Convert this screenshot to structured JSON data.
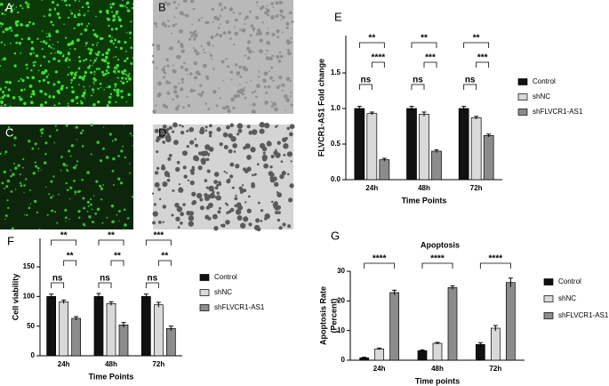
{
  "panels": [
    "A",
    "B",
    "C",
    "D"
  ],
  "chart_data": [
    {
      "type": "bar",
      "label": "E",
      "y_label": [
        "FLVCR1-AS1 Fold change"
      ],
      "x_label": "Time Points",
      "categories": [
        "24h",
        "48h",
        "72h"
      ],
      "series": [
        {
          "name": "Control",
          "color": "#111111",
          "values": [
            1.0,
            1.0,
            1.0
          ],
          "errors": [
            0.03,
            0.03,
            0.03
          ]
        },
        {
          "name": "shNC",
          "color": "#d9d9d9",
          "values": [
            0.93,
            0.92,
            0.87
          ],
          "errors": [
            0.02,
            0.03,
            0.02
          ]
        },
        {
          "name": "shFLVCR1-AS1",
          "color": "#8c8c8c",
          "values": [
            0.28,
            0.4,
            0.62
          ],
          "errors": [
            0.02,
            0.02,
            0.02
          ]
        }
      ],
      "ylim": [
        0,
        1.5
      ],
      "yticks": [
        {
          "value": 0,
          "label": "0.0"
        },
        {
          "value": 0.5,
          "label": "0.5"
        },
        {
          "value": 1,
          "label": "1.0"
        },
        {
          "value": 1.5,
          "label": "1.5"
        }
      ],
      "annotations": [
        [
          "**",
          "ns",
          "****"
        ],
        [
          "**",
          "ns",
          "***"
        ],
        [
          "**",
          "ns",
          "***"
        ]
      ]
    },
    {
      "type": "bar",
      "label": "F",
      "y_label": [
        "Cell viability"
      ],
      "x_label": "Time Points",
      "categories": [
        "24h",
        "48h",
        "72h"
      ],
      "series": [
        {
          "name": "Control",
          "color": "#111111",
          "values": [
            100,
            100,
            100
          ],
          "errors": [
            4,
            5,
            4
          ]
        },
        {
          "name": "shNC",
          "color": "#d9d9d9",
          "values": [
            91,
            88,
            86
          ],
          "errors": [
            3,
            3,
            4
          ]
        },
        {
          "name": "shFLVCR1-AS1",
          "color": "#8c8c8c",
          "values": [
            63,
            52,
            46
          ],
          "errors": [
            3,
            4,
            4
          ]
        }
      ],
      "ylim": [
        0,
        150
      ],
      "yticks": [
        0,
        50,
        100,
        150
      ],
      "annotations": [
        [
          "**",
          "ns",
          "**"
        ],
        [
          "**",
          "ns",
          "**"
        ],
        [
          "***",
          "ns",
          "**"
        ]
      ]
    },
    {
      "type": "bar",
      "label": "G",
      "title": "Apoptosis",
      "y_label": [
        "Apoptosis Rate",
        "(Percent)"
      ],
      "x_label": "Time points",
      "categories": [
        "24h",
        "48h",
        "72h"
      ],
      "series": [
        {
          "name": "Control",
          "color": "#111111",
          "values": [
            0.8,
            3.2,
            5.3
          ],
          "errors": [
            0.2,
            0.3,
            0.6
          ]
        },
        {
          "name": "shNC",
          "color": "#d9d9d9",
          "values": [
            3.8,
            5.7,
            10.8
          ],
          "errors": [
            0.3,
            0.3,
            0.9
          ]
        },
        {
          "name": "shFLVCR1-AS1",
          "color": "#8c8c8c",
          "values": [
            22.8,
            24.5,
            26.2
          ],
          "errors": [
            0.8,
            0.6,
            1.5
          ]
        }
      ],
      "ylim": [
        0,
        30
      ],
      "yticks": [
        0,
        10,
        20,
        30
      ],
      "annotations": [
        [
          "****"
        ],
        [
          "****"
        ],
        [
          "****"
        ]
      ]
    }
  ]
}
